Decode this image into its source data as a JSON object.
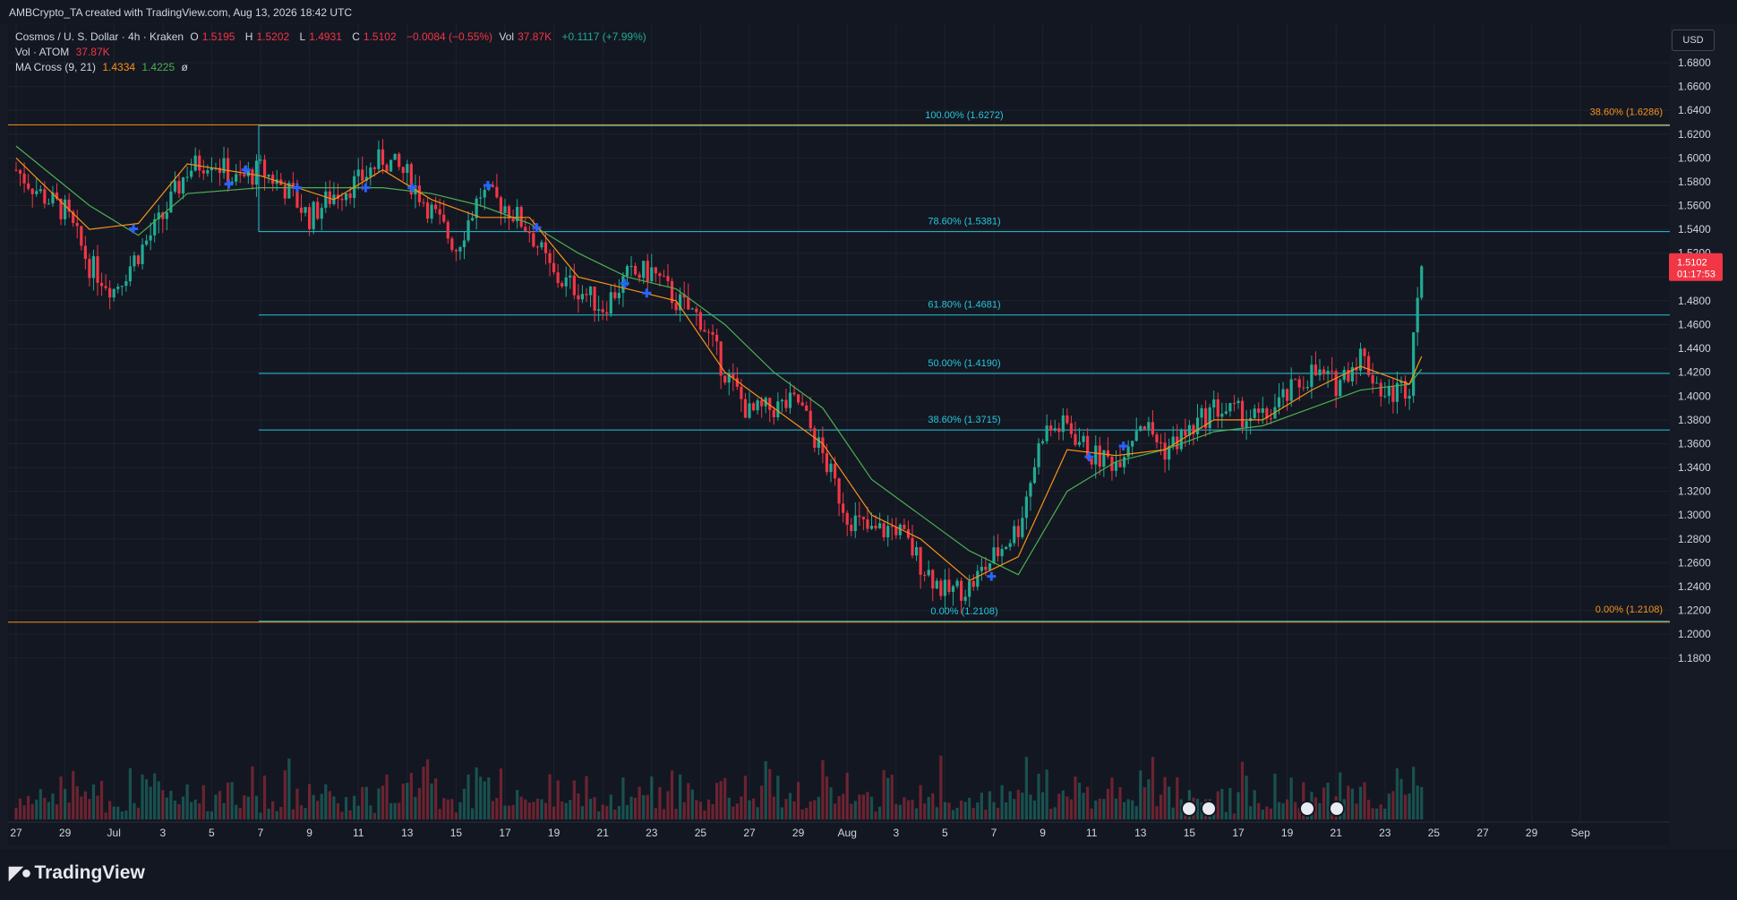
{
  "credit": "AMBCrypto_TA created with TradingView.com, Aug 13, 2026 18:42 UTC",
  "legend": {
    "symbol": "Cosmos / U. S. Dollar · 4h · Kraken",
    "o_label": "O",
    "o_value": "1.5195",
    "h_label": "H",
    "h_value": "1.5202",
    "l_label": "L",
    "l_value": "1.4931",
    "c_label": "C",
    "c_value": "1.5102",
    "change": "−0.0084 (−0.55%)",
    "vol_label": "Vol",
    "vol_value": "37.87K",
    "vol_change": "+0.1117 (+7.99%)",
    "vol_row_label": "Vol · ATOM",
    "vol_row_value": "37.87K",
    "ma_label": "MA Cross (9, 21)",
    "ma_fast": "1.4334",
    "ma_slow": "1.4225",
    "ma_extra": "ø"
  },
  "currency": "USD",
  "price_tag": {
    "price": "1.5102",
    "countdown": "01:17:53"
  },
  "brand": "TradingView",
  "colors": {
    "up": "#22ab94",
    "down": "#f23645",
    "fib": "#26c6da",
    "fib_orange": "#f7931a",
    "ma_fast": "#f7931a",
    "ma_slow": "#4caf50",
    "marker": "#2962ff",
    "bg": "#131722"
  },
  "chart_data": {
    "type": "candlestick",
    "timeframe": "4h",
    "ylim": [
      1.17,
      1.705
    ],
    "y_ticks": [
      "1.6800",
      "1.6600",
      "1.6400",
      "1.6200",
      "1.6000",
      "1.5800",
      "1.5600",
      "1.5400",
      "1.5200",
      "1.5000",
      "1.4800",
      "1.4600",
      "1.4400",
      "1.4200",
      "1.4000",
      "1.3800",
      "1.3600",
      "1.3400",
      "1.3200",
      "1.3000",
      "1.2800",
      "1.2600",
      "1.2400",
      "1.2200",
      "1.2000",
      "1.1800"
    ],
    "x_ticks": [
      "27",
      "29",
      "Jul",
      "3",
      "5",
      "7",
      "9",
      "11",
      "13",
      "15",
      "17",
      "19",
      "21",
      "23",
      "25",
      "27",
      "29",
      "Aug",
      "3",
      "5",
      "7",
      "9",
      "11",
      "13",
      "15",
      "17",
      "19",
      "21",
      "23",
      "25",
      "27",
      "29",
      "Sep"
    ],
    "fibonacci": [
      {
        "label": "100.00% (1.6272)",
        "price": 1.6272
      },
      {
        "label": "78.60% (1.5381)",
        "price": 1.5381
      },
      {
        "label": "61.80% (1.4681)",
        "price": 1.4681
      },
      {
        "label": "50.00% (1.4190)",
        "price": 1.419
      },
      {
        "label": "38.60% (1.3715)",
        "price": 1.3715
      },
      {
        "label": "0.00% (1.2108)",
        "price": 1.2108
      }
    ],
    "fibonacci_orange": [
      {
        "label": "38.60% (1.6286)",
        "price": 1.6286
      },
      {
        "label": "0.00% (1.2108)",
        "price": 1.2108
      }
    ],
    "price_path": [
      {
        "day": 0,
        "price": 1.59
      },
      {
        "day": 1,
        "price": 1.57
      },
      {
        "day": 2,
        "price": 1.555
      },
      {
        "day": 3,
        "price": 1.51
      },
      {
        "day": 4,
        "price": 1.49
      },
      {
        "day": 5,
        "price": 1.52
      },
      {
        "day": 6,
        "price": 1.55
      },
      {
        "day": 7,
        "price": 1.59
      },
      {
        "day": 8,
        "price": 1.6
      },
      {
        "day": 9,
        "price": 1.58
      },
      {
        "day": 10,
        "price": 1.59
      },
      {
        "day": 11,
        "price": 1.575
      },
      {
        "day": 12,
        "price": 1.55
      },
      {
        "day": 13,
        "price": 1.57
      },
      {
        "day": 14,
        "price": 1.58
      },
      {
        "day": 15,
        "price": 1.6
      },
      {
        "day": 16,
        "price": 1.585
      },
      {
        "day": 17,
        "price": 1.555
      },
      {
        "day": 18,
        "price": 1.525
      },
      {
        "day": 19,
        "price": 1.57
      },
      {
        "day": 20,
        "price": 1.56
      },
      {
        "day": 21,
        "price": 1.54
      },
      {
        "day": 22,
        "price": 1.5
      },
      {
        "day": 23,
        "price": 1.49
      },
      {
        "day": 24,
        "price": 1.475
      },
      {
        "day": 25,
        "price": 1.5
      },
      {
        "day": 26,
        "price": 1.505
      },
      {
        "day": 27,
        "price": 1.48
      },
      {
        "day": 28,
        "price": 1.465
      },
      {
        "day": 29,
        "price": 1.42
      },
      {
        "day": 30,
        "price": 1.385
      },
      {
        "day": 31,
        "price": 1.39
      },
      {
        "day": 32,
        "price": 1.395
      },
      {
        "day": 33,
        "price": 1.35
      },
      {
        "day": 34,
        "price": 1.3
      },
      {
        "day": 35,
        "price": 1.285
      },
      {
        "day": 36,
        "price": 1.29
      },
      {
        "day": 37,
        "price": 1.26
      },
      {
        "day": 38,
        "price": 1.235
      },
      {
        "day": 39,
        "price": 1.24
      },
      {
        "day": 40,
        "price": 1.265
      },
      {
        "day": 41,
        "price": 1.29
      },
      {
        "day": 42,
        "price": 1.37
      },
      {
        "day": 43,
        "price": 1.375
      },
      {
        "day": 44,
        "price": 1.35
      },
      {
        "day": 45,
        "price": 1.345
      },
      {
        "day": 46,
        "price": 1.38
      },
      {
        "day": 47,
        "price": 1.355
      },
      {
        "day": 48,
        "price": 1.37
      },
      {
        "day": 49,
        "price": 1.39
      },
      {
        "day": 50,
        "price": 1.385
      },
      {
        "day": 51,
        "price": 1.38
      },
      {
        "day": 52,
        "price": 1.4
      },
      {
        "day": 53,
        "price": 1.42
      },
      {
        "day": 54,
        "price": 1.41
      },
      {
        "day": 55,
        "price": 1.435
      },
      {
        "day": 56,
        "price": 1.4
      },
      {
        "day": 57,
        "price": 1.41
      },
      {
        "day": 57.3,
        "price": 1.49
      },
      {
        "day": 57.5,
        "price": 1.51
      }
    ],
    "ma_fast_path": [
      {
        "day": 0,
        "price": 1.6
      },
      {
        "day": 3,
        "price": 1.54
      },
      {
        "day": 5,
        "price": 1.545
      },
      {
        "day": 7,
        "price": 1.595
      },
      {
        "day": 10,
        "price": 1.585
      },
      {
        "day": 13,
        "price": 1.565
      },
      {
        "day": 15,
        "price": 1.59
      },
      {
        "day": 17,
        "price": 1.565
      },
      {
        "day": 19,
        "price": 1.55
      },
      {
        "day": 21,
        "price": 1.55
      },
      {
        "day": 23,
        "price": 1.5
      },
      {
        "day": 25,
        "price": 1.49
      },
      {
        "day": 27,
        "price": 1.48
      },
      {
        "day": 29,
        "price": 1.42
      },
      {
        "day": 31,
        "price": 1.39
      },
      {
        "day": 33,
        "price": 1.36
      },
      {
        "day": 35,
        "price": 1.3
      },
      {
        "day": 37,
        "price": 1.28
      },
      {
        "day": 39,
        "price": 1.245
      },
      {
        "day": 41,
        "price": 1.265
      },
      {
        "day": 43,
        "price": 1.355
      },
      {
        "day": 45,
        "price": 1.35
      },
      {
        "day": 47,
        "price": 1.355
      },
      {
        "day": 49,
        "price": 1.38
      },
      {
        "day": 51,
        "price": 1.38
      },
      {
        "day": 53,
        "price": 1.405
      },
      {
        "day": 55,
        "price": 1.425
      },
      {
        "day": 57,
        "price": 1.41
      },
      {
        "day": 57.5,
        "price": 1.4334
      }
    ],
    "ma_slow_path": [
      {
        "day": 0,
        "price": 1.61
      },
      {
        "day": 3,
        "price": 1.56
      },
      {
        "day": 5,
        "price": 1.535
      },
      {
        "day": 7,
        "price": 1.57
      },
      {
        "day": 10,
        "price": 1.575
      },
      {
        "day": 13,
        "price": 1.575
      },
      {
        "day": 15,
        "price": 1.575
      },
      {
        "day": 17,
        "price": 1.57
      },
      {
        "day": 19,
        "price": 1.56
      },
      {
        "day": 21,
        "price": 1.545
      },
      {
        "day": 23,
        "price": 1.52
      },
      {
        "day": 25,
        "price": 1.5
      },
      {
        "day": 27,
        "price": 1.49
      },
      {
        "day": 29,
        "price": 1.46
      },
      {
        "day": 31,
        "price": 1.42
      },
      {
        "day": 33,
        "price": 1.39
      },
      {
        "day": 35,
        "price": 1.33
      },
      {
        "day": 37,
        "price": 1.3
      },
      {
        "day": 39,
        "price": 1.27
      },
      {
        "day": 41,
        "price": 1.25
      },
      {
        "day": 43,
        "price": 1.32
      },
      {
        "day": 45,
        "price": 1.345
      },
      {
        "day": 47,
        "price": 1.355
      },
      {
        "day": 49,
        "price": 1.37
      },
      {
        "day": 51,
        "price": 1.375
      },
      {
        "day": 53,
        "price": 1.39
      },
      {
        "day": 55,
        "price": 1.405
      },
      {
        "day": 57,
        "price": 1.41
      },
      {
        "day": 57.5,
        "price": 1.4225
      }
    ],
    "cross_markers": [
      {
        "day": 4.8,
        "price": 1.5405
      },
      {
        "day": 8.7,
        "price": 1.578
      },
      {
        "day": 9.4,
        "price": 1.59
      },
      {
        "day": 11.5,
        "price": 1.575
      },
      {
        "day": 14.3,
        "price": 1.575
      },
      {
        "day": 16.2,
        "price": 1.575
      },
      {
        "day": 19.3,
        "price": 1.577
      },
      {
        "day": 21.3,
        "price": 1.5415
      },
      {
        "day": 24.9,
        "price": 1.4945
      },
      {
        "day": 25.8,
        "price": 1.4865
      },
      {
        "day": 39.9,
        "price": 1.2485
      },
      {
        "day": 43.9,
        "price": 1.349
      },
      {
        "day": 45.3,
        "price": 1.358
      }
    ]
  }
}
